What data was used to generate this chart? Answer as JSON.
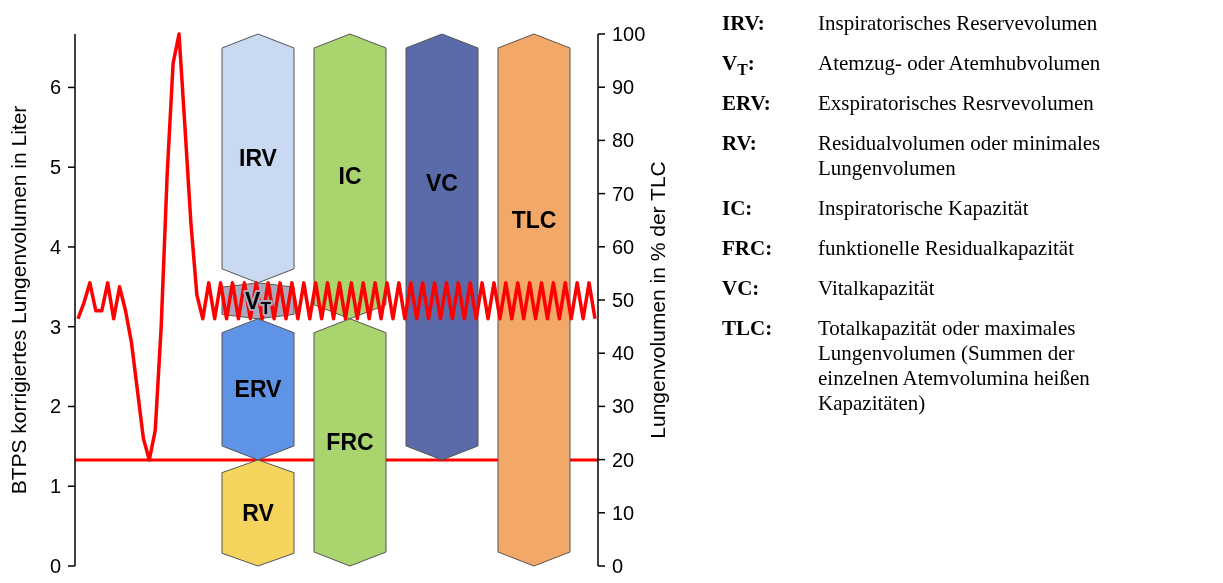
{
  "chart_data": {
    "type": "line",
    "ylabel": "BTPS korrigiertes Lungenvolumen in Liter",
    "y2label": "Lungenvolumen in % der TLC",
    "categories": [
      null,
      null,
      null,
      null,
      null,
      null,
      null,
      null,
      null,
      null,
      null,
      null,
      null,
      null,
      null,
      null,
      null,
      null,
      null,
      null,
      null,
      null,
      null,
      null,
      null,
      null,
      null,
      null,
      null,
      null,
      null,
      null,
      null,
      null,
      null,
      null,
      null,
      null,
      null,
      null,
      null,
      null,
      null,
      null,
      null,
      null,
      null,
      null,
      null,
      null,
      null,
      null,
      null,
      null,
      null,
      null,
      null,
      null,
      null,
      null,
      null,
      null,
      null,
      null,
      null,
      null,
      null,
      null,
      null,
      null,
      null,
      null,
      null,
      null,
      null,
      null,
      null,
      null,
      null,
      null,
      null,
      null,
      null,
      null,
      null,
      null,
      null,
      null
    ],
    "ylim": [
      0,
      6.67
    ],
    "yticks": [
      0,
      1,
      2,
      3,
      4,
      5,
      6
    ],
    "y2lim": [
      0,
      100
    ],
    "y2ticks": [
      0,
      10,
      20,
      30,
      40,
      50,
      60,
      70,
      80,
      90,
      100
    ],
    "tick_labels": "y",
    "ref_lines": [
      {
        "axis": "y",
        "value": 1.33,
        "color": "#ff0000"
      }
    ],
    "bands": [
      {
        "axis": "y",
        "from": 3.55,
        "to": 6.67,
        "label": "IRV",
        "color": "#c9d9f2"
      },
      {
        "axis": "y",
        "from": 3.1,
        "to": 3.55,
        "label": "V$_{T}$",
        "color": "#a9a9bd"
      },
      {
        "axis": "y",
        "from": 1.33,
        "to": 3.1,
        "label": "ERV",
        "color": "#5f93e6"
      },
      {
        "axis": "y",
        "from": 0,
        "to": 1.33,
        "label": "RV",
        "color": "#f4d45c"
      },
      {
        "axis": "y",
        "from": 3.1,
        "to": 6.67,
        "label": "IC",
        "color": "#a9d46e"
      },
      {
        "axis": "y",
        "from": 0,
        "to": 3.1,
        "label": "FRC",
        "color": "#a9d46e"
      },
      {
        "axis": "y",
        "from": 1.33,
        "to": 6.67,
        "label": "VC",
        "color": "#5b6aa9"
      },
      {
        "axis": "y",
        "from": 0,
        "to": 6.67,
        "label": "TLC",
        "color": "#f2a868"
      }
    ],
    "series": [
      {
        "color": "#ff0000",
        "values": [
          3.1,
          3.3,
          3.55,
          3.2,
          3.2,
          3.55,
          3.1,
          3.5,
          3.2,
          2.8,
          2.2,
          1.6,
          1.33,
          1.7,
          3.0,
          4.9,
          6.3,
          6.67,
          5.5,
          4.3,
          3.4,
          3.1,
          3.55,
          3.1,
          3.55,
          3.1,
          3.55,
          3.1,
          3.55,
          3.1,
          3.55,
          3.1,
          3.55,
          3.1,
          3.55,
          3.1,
          3.55,
          3.1,
          3.55,
          3.1,
          3.55,
          3.1,
          3.55,
          3.1,
          3.55,
          3.1,
          3.55,
          3.1,
          3.55,
          3.1,
          3.55,
          3.1,
          3.55,
          3.1,
          3.55,
          3.1,
          3.55,
          3.1,
          3.55,
          3.1,
          3.55,
          3.1,
          3.55,
          3.1,
          3.55,
          3.1,
          3.55,
          3.1,
          3.55,
          3.1,
          3.55,
          3.1,
          3.55,
          3.1,
          3.55,
          3.1,
          3.55,
          3.1,
          3.55,
          3.1,
          3.55,
          3.1,
          3.55,
          3.1,
          3.55,
          3.1,
          3.55,
          3.1
        ]
      }
    ],
    "annotations": [
      "IRV: Inspiratorisches Reservevolumen",
      "V$_{T}$: Atemzug- oder Atemhubvolumen",
      "ERV: Exspiratorisches Resrvevolumen",
      "RV: Residualvolumen oder minimales Lungenvolumen",
      "IC: Inspiratorische Kapazität",
      "FRC: funktionelle Residualkapazität",
      "VC: Vitalkapazität",
      "TLC: Totalkapazität oder maximales Lungenvolumen (Summen der einzelnen Atemvolumina heißen Kapazitäten)"
    ]
  }
}
